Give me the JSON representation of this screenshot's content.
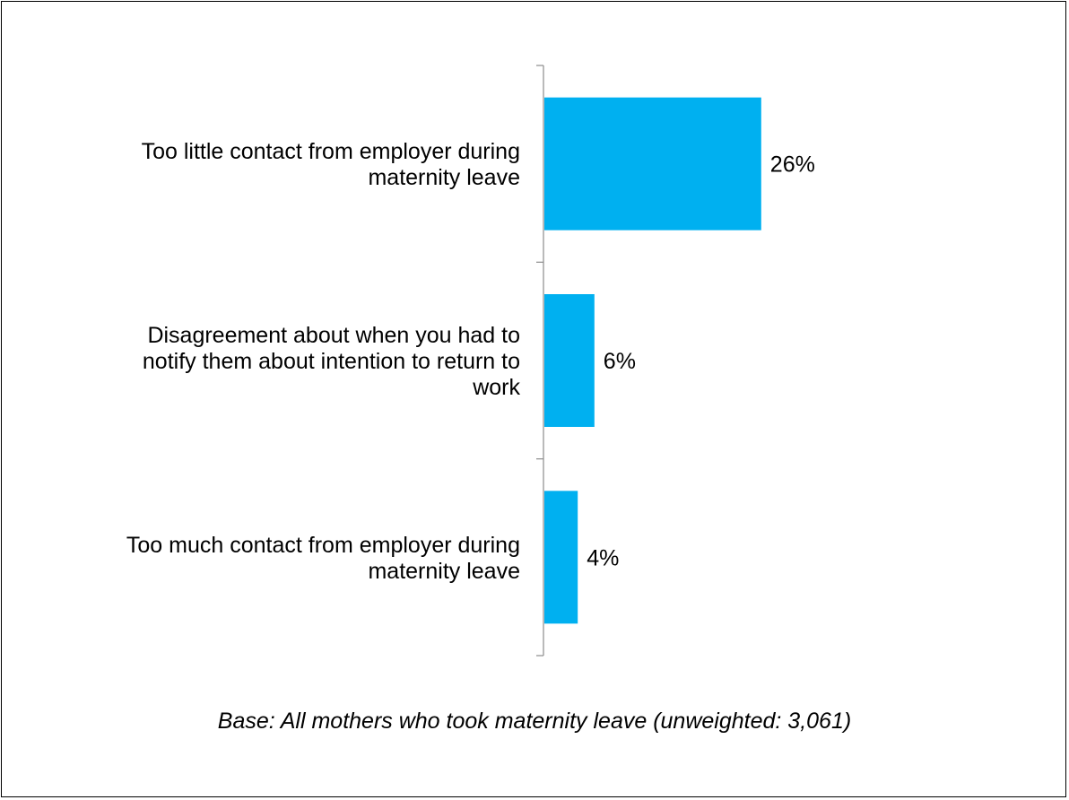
{
  "chart_data": {
    "type": "bar",
    "orientation": "horizontal",
    "categories": [
      [
        "Too little contact from employer during",
        "maternity leave"
      ],
      [
        "Disagreement about when you had to",
        "notify them about intention to return to",
        "work"
      ],
      [
        "Too much contact from employer during",
        "maternity leave"
      ]
    ],
    "values": [
      26,
      6,
      4
    ],
    "value_labels": [
      "26%",
      "6%",
      "4%"
    ],
    "bar_color": "#00b0f0",
    "xlim": [
      0,
      100
    ],
    "grid": false,
    "legend": "none"
  },
  "footnote": "Base: All mothers who took maternity leave (unweighted: 3,061)"
}
